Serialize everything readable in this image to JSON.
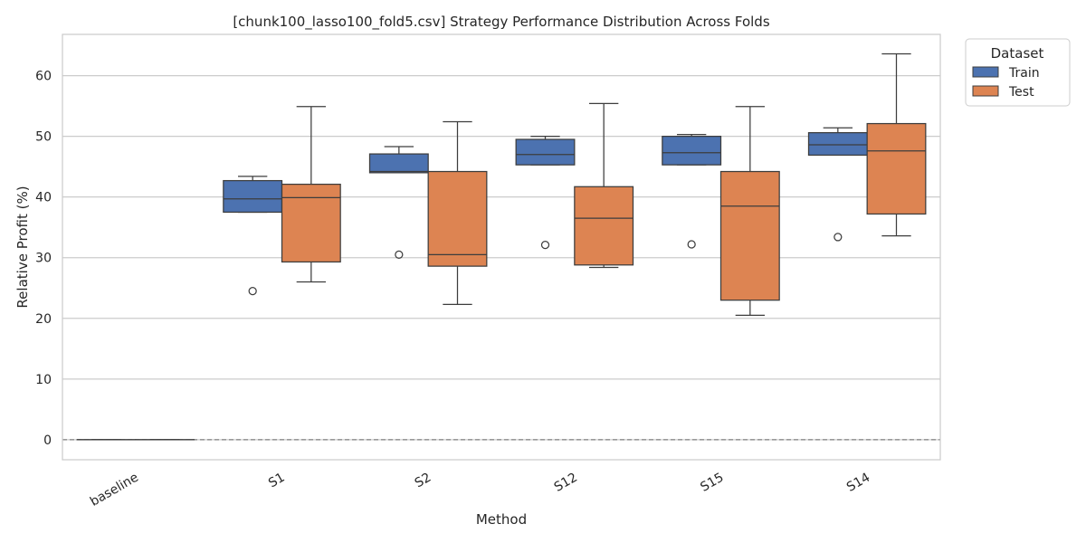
{
  "chart_data": {
    "type": "box",
    "title": "[chunk100_lasso100_fold5.csv] Strategy Performance Distribution Across Folds",
    "xlabel": "Method",
    "ylabel": "Relative Profit (%)",
    "ylim": [
      -3.3,
      66.8
    ],
    "yticks": [
      0,
      10,
      20,
      30,
      40,
      50,
      60
    ],
    "grid": true,
    "reference_line_y": 0,
    "legend": {
      "title": "Dataset",
      "placement": "outside-top-right"
    },
    "categories": [
      "baseline",
      "S1",
      "S2",
      "S12",
      "S15",
      "S14"
    ],
    "series": [
      {
        "name": "Train",
        "color": "#4c72b0",
        "boxes": [
          {
            "min": 0,
            "q1": 0,
            "median": 0,
            "q3": 0,
            "max": 0,
            "outliers": []
          },
          {
            "min": 37.5,
            "q1": 37.5,
            "median": 39.7,
            "q3": 42.7,
            "max": 43.4,
            "outliers": [
              24.5
            ]
          },
          {
            "min": 44.0,
            "q1": 44.0,
            "median": 44.2,
            "q3": 47.1,
            "max": 48.3,
            "outliers": [
              30.5
            ]
          },
          {
            "min": 45.3,
            "q1": 45.3,
            "median": 47.0,
            "q3": 49.5,
            "max": 50.0,
            "outliers": [
              32.1
            ]
          },
          {
            "min": 45.3,
            "q1": 45.3,
            "median": 47.3,
            "q3": 50.0,
            "max": 50.3,
            "outliers": [
              32.2
            ]
          },
          {
            "min": 46.9,
            "q1": 46.9,
            "median": 48.6,
            "q3": 50.6,
            "max": 51.4,
            "outliers": [
              33.4
            ]
          }
        ]
      },
      {
        "name": "Test",
        "color": "#dd8452",
        "boxes": [
          {
            "min": 0,
            "q1": 0,
            "median": 0,
            "q3": 0,
            "max": 0,
            "outliers": []
          },
          {
            "min": 26.0,
            "q1": 29.3,
            "median": 39.9,
            "q3": 42.1,
            "max": 54.9,
            "outliers": []
          },
          {
            "min": 22.3,
            "q1": 28.6,
            "median": 30.5,
            "q3": 44.2,
            "max": 52.4,
            "outliers": []
          },
          {
            "min": 28.4,
            "q1": 28.8,
            "median": 36.5,
            "q3": 41.7,
            "max": 55.4,
            "outliers": []
          },
          {
            "min": 20.5,
            "q1": 23.0,
            "median": 38.5,
            "q3": 44.2,
            "max": 54.9,
            "outliers": []
          },
          {
            "min": 33.6,
            "q1": 37.2,
            "median": 47.6,
            "q3": 52.1,
            "max": 63.6,
            "outliers": []
          }
        ]
      }
    ]
  }
}
